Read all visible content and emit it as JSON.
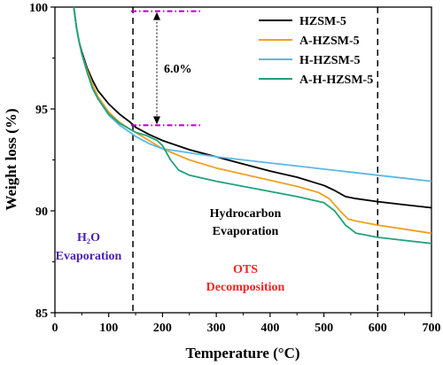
{
  "chart_data": {
    "type": "line",
    "title": "",
    "xlabel": "Temperature (°C)",
    "ylabel": "Weight loss (%)",
    "xlim": [
      0,
      700
    ],
    "ylim": [
      85,
      100
    ],
    "x_ticks": [
      0,
      100,
      200,
      300,
      400,
      500,
      600,
      700
    ],
    "y_ticks": [
      85,
      90,
      95,
      100
    ],
    "grid": false,
    "legend_position": "top-right",
    "series": [
      {
        "name": "HZSM-5",
        "color": "#000000",
        "x": [
          35,
          40,
          45,
          50,
          60,
          70,
          80,
          100,
          120,
          140,
          150,
          175,
          200,
          250,
          300,
          350,
          400,
          450,
          500,
          520,
          540,
          560,
          600,
          650,
          700
        ],
        "y": [
          100,
          99.0,
          98.3,
          97.8,
          97.0,
          96.4,
          95.9,
          95.25,
          94.75,
          94.35,
          94.1,
          93.75,
          93.45,
          93.0,
          92.65,
          92.3,
          91.95,
          91.65,
          91.25,
          91.0,
          90.7,
          90.6,
          90.45,
          90.3,
          90.15
        ]
      },
      {
        "name": "A-HZSM-5",
        "color": "#f0a020",
        "x": [
          35,
          40,
          45,
          50,
          60,
          70,
          80,
          100,
          120,
          140,
          150,
          175,
          200,
          250,
          300,
          350,
          400,
          450,
          490,
          510,
          530,
          545,
          560,
          600,
          650,
          700
        ],
        "y": [
          100,
          99.0,
          98.3,
          97.7,
          96.9,
          96.2,
          95.6,
          94.85,
          94.35,
          94.0,
          93.85,
          93.45,
          93.05,
          92.5,
          92.1,
          91.8,
          91.5,
          91.2,
          90.9,
          90.6,
          90.0,
          89.6,
          89.5,
          89.3,
          89.1,
          88.9
        ]
      },
      {
        "name": "H-HZSM-5",
        "color": "#5bb8e6",
        "x": [
          35,
          40,
          45,
          50,
          60,
          70,
          80,
          100,
          120,
          140,
          150,
          175,
          200,
          250,
          300,
          350,
          400,
          450,
          500,
          550,
          600,
          650,
          700
        ],
        "y": [
          100,
          99.0,
          98.3,
          97.7,
          96.8,
          96.0,
          95.5,
          94.7,
          94.2,
          93.85,
          93.65,
          93.3,
          93.05,
          92.85,
          92.65,
          92.5,
          92.35,
          92.2,
          92.05,
          91.9,
          91.75,
          91.6,
          91.45
        ]
      },
      {
        "name": "A-H-HZSM-5",
        "color": "#1fa27a",
        "x": [
          35,
          40,
          45,
          50,
          60,
          70,
          80,
          100,
          120,
          140,
          150,
          170,
          190,
          200,
          215,
          230,
          250,
          300,
          350,
          400,
          450,
          500,
          520,
          540,
          560,
          600,
          650,
          700
        ],
        "y": [
          100,
          99.0,
          98.3,
          97.7,
          96.8,
          96.0,
          95.5,
          94.75,
          94.3,
          94.0,
          93.85,
          93.7,
          93.45,
          93.2,
          92.5,
          92.0,
          91.75,
          91.45,
          91.2,
          90.95,
          90.7,
          90.4,
          90.0,
          89.3,
          88.9,
          88.7,
          88.55,
          88.4
        ]
      }
    ],
    "vlines": [
      145,
      600
    ],
    "annotations": {
      "delta_label": "6.0%",
      "delta_top": 99.8,
      "delta_bottom": 94.2,
      "h2o_line1": "H₂O",
      "h2o_line2": "Evaporation",
      "hydro_line1": "Hydrocarbon",
      "hydro_line2": "Evaporation",
      "ots_line1": "OTS",
      "ots_line2": "Decomposition"
    },
    "colors": {
      "h2o_text": "#4b1fb5",
      "ots_text": "#ff2020",
      "marker": "#b300c8",
      "axis": "#000000"
    }
  }
}
